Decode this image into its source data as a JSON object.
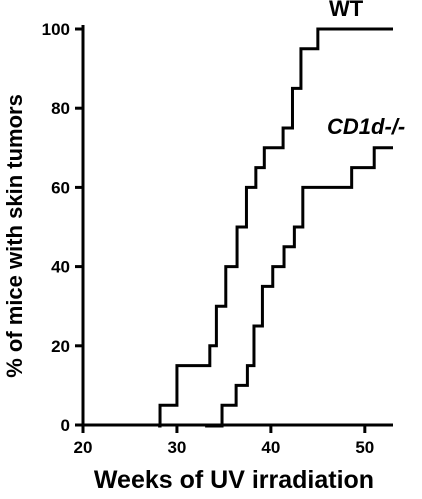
{
  "chart_data": {
    "type": "line",
    "step": true,
    "xlabel": "Weeks of UV irradiation",
    "ylabel": "% of mice with skin tumors",
    "xlim": [
      20,
      53
    ],
    "ylim": [
      0,
      100
    ],
    "xticks": [
      20,
      30,
      40,
      50
    ],
    "yticks": [
      0,
      20,
      40,
      60,
      80,
      100
    ],
    "grid": false,
    "legend": "none",
    "series": [
      {
        "name": "WT",
        "italic": false,
        "x": [
          28,
          28.2,
          30,
          33.5,
          34.2,
          35.2,
          36.4,
          37.4,
          38.4,
          39.3,
          41.3,
          42.3,
          43.2,
          45,
          53
        ],
        "y": [
          0,
          5,
          15,
          20,
          30,
          40,
          50,
          60,
          65,
          70,
          75,
          85,
          95,
          100,
          100
        ]
      },
      {
        "name": "CD1d-/-",
        "italic": true,
        "x": [
          33,
          33.1,
          34.8,
          36.3,
          37.5,
          38.2,
          39.1,
          40.2,
          41.4,
          42.5,
          43.4,
          48.6,
          51,
          53
        ],
        "y": [
          0,
          0,
          5,
          10,
          15,
          25,
          35,
          40,
          45,
          50,
          60,
          65,
          70,
          70
        ]
      }
    ]
  }
}
